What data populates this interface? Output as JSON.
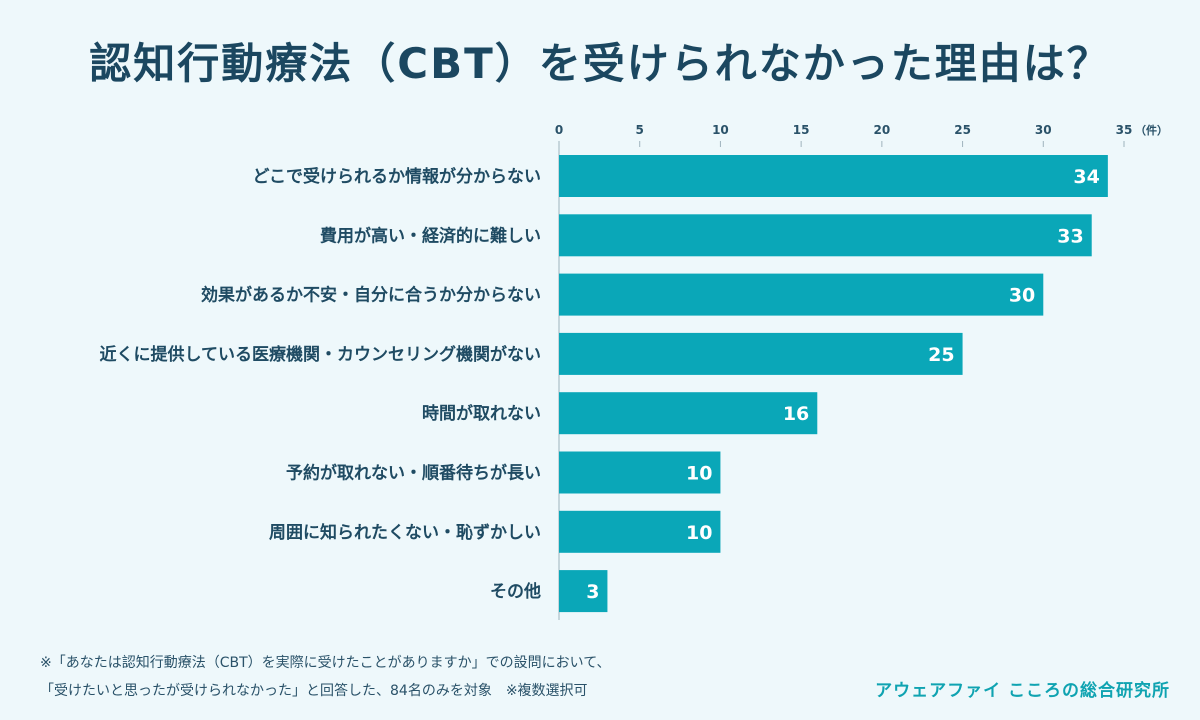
{
  "title": "認知行動療法（CBT）を受けられなかった理由は？",
  "chart_data": {
    "type": "bar",
    "orientation": "horizontal",
    "categories": [
      "どこで受けられるか情報が分からない",
      "費用が高い・経済的に難しい",
      "効果があるか不安・自分に合うか分からない",
      "近くに提供している医療機関・カウンセリング機関がない",
      "時間が取れない",
      "予約が取れない・順番待ちが長い",
      "周囲に知られたくない・恥ずかしい",
      "その他"
    ],
    "values": [
      34,
      33,
      30,
      25,
      16,
      10,
      10,
      3
    ],
    "xlim": [
      0,
      35
    ],
    "xticks": [
      0,
      5,
      10,
      15,
      20,
      25,
      30,
      35
    ],
    "xunit": "（件）",
    "bar_color": "#0aa7b8"
  },
  "footnotes": {
    "line1": "※「あなたは認知行動療法（CBT）を実際に受けたことがありますか」での設問において、",
    "line2": "「受けたいと思ったが受けられなかった」と回答した、84名のみを対象　※複数選択可"
  },
  "brand": "アウェアファイ こころの総合研究所"
}
